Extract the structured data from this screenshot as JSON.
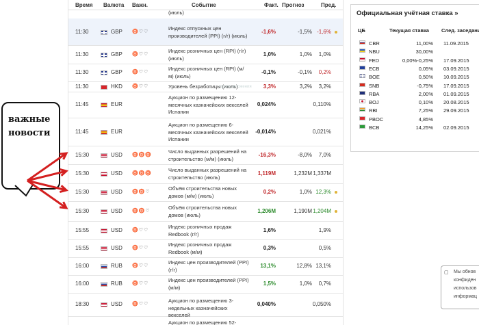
{
  "calendar": {
    "headers": {
      "time": "Время",
      "currency": "Валюта",
      "importance": "Важн.",
      "event": "Событие",
      "actual": "Факт.",
      "forecast": "Прогноз",
      "previous": "Пред."
    },
    "top_fragment": "(июль)",
    "rows": [
      {
        "time": "11:30",
        "cur": "GBP",
        "flag": "gb",
        "bulls": "♉♡♡",
        "event": "Индекс отпускных цен производителей (PPI) (г/г) (июль)",
        "actual": "-1,6%",
        "actual_class": "neg",
        "forecast": "-1,5%",
        "previous": "-1,6%",
        "previous_class": "neg",
        "dot": true,
        "hl": true
      },
      {
        "time": "11:30",
        "cur": "GBP",
        "flag": "gb",
        "bulls": "♉♡♡",
        "event": "Индекс розничных цен (RPI) (г/г) (июль)",
        "actual": "1,0%",
        "actual_class": "neu",
        "forecast": "1,0%",
        "previous": "1,0%",
        "previous_class": "",
        "dot": false,
        "hl": false
      },
      {
        "time": "11:30",
        "cur": "GBP",
        "flag": "gb",
        "bulls": "♉♡♡",
        "event": "Индекс розничных цен (RPI) (м/м) (июль)",
        "actual": "-0,1%",
        "actual_class": "neu",
        "forecast": "-0,1%",
        "previous": "0,2%",
        "previous_class": "neg",
        "dot": false,
        "hl": false
      },
      {
        "time": "11:30",
        "cur": "HKD",
        "flag": "hk",
        "bulls": "♉♡♡",
        "event": "Уровень безработицы (июль)",
        "actual": "3,3%",
        "actual_class": "neg",
        "forecast": "3,2%",
        "previous": "3,2%",
        "previous_class": "",
        "dot": false,
        "hl": false
      },
      {
        "time": "11:45",
        "cur": "EUR",
        "flag": "es",
        "bulls": "",
        "event": "Аукцион по размещению 12-месячных казначейских векселей Испании",
        "actual": "0,024%",
        "actual_class": "neu",
        "forecast": "",
        "previous": "0,110%",
        "previous_class": "",
        "dot": false,
        "hl": false
      },
      {
        "time": "11:45",
        "cur": "EUR",
        "flag": "es",
        "bulls": "",
        "event": "Аукцион по размещению 6-месячных казначейских векселей Испании",
        "actual": "-0,014%",
        "actual_class": "neu",
        "forecast": "",
        "previous": "0,021%",
        "previous_class": "",
        "dot": false,
        "hl": false
      },
      {
        "time": "15:30",
        "cur": "USD",
        "flag": "us",
        "bulls": "♉♉♉",
        "event": "Число выданных разрешений на строительство (м/м) (июль)",
        "actual": "-16,3%",
        "actual_class": "neg",
        "forecast": "-8,0%",
        "previous": "7,0%",
        "previous_class": "",
        "dot": false,
        "hl": false
      },
      {
        "time": "15:30",
        "cur": "USD",
        "flag": "us",
        "bulls": "♉♉♉",
        "event": "Число выданных разрешений на строительство (июль)",
        "actual": "1,119M",
        "actual_class": "neg",
        "forecast": "1,232M",
        "previous": "1,337M",
        "previous_class": "",
        "dot": false,
        "hl": false
      },
      {
        "time": "15:30",
        "cur": "USD",
        "flag": "us",
        "bulls": "♉♉♡",
        "event": "Объём строительства новых домов (м/м) (июль)",
        "actual": "0,2%",
        "actual_class": "neg",
        "forecast": "1,0%",
        "previous": "12,3%",
        "previous_class": "pos",
        "dot": true,
        "hl": false
      },
      {
        "time": "15:30",
        "cur": "USD",
        "flag": "us",
        "bulls": "♉♉♡",
        "event": "Объём строительства новых домов (июль)",
        "actual": "1,206M",
        "actual_class": "pos",
        "forecast": "1,190M",
        "previous": "1,204M",
        "previous_class": "pos",
        "dot": true,
        "hl": false
      },
      {
        "time": "15:55",
        "cur": "USD",
        "flag": "us",
        "bulls": "♉♡♡",
        "event": "Индекс розничных продаж Redbook (г/г)",
        "actual": "1,6%",
        "actual_class": "neu",
        "forecast": "",
        "previous": "1,9%",
        "previous_class": "",
        "dot": false,
        "hl": false
      },
      {
        "time": "15:55",
        "cur": "USD",
        "flag": "us",
        "bulls": "♉♡♡",
        "event": "Индекс розничных продаж Redbook (м/м)",
        "actual": "0,3%",
        "actual_class": "neu",
        "forecast": "",
        "previous": "0,5%",
        "previous_class": "",
        "dot": false,
        "hl": false
      },
      {
        "time": "16:00",
        "cur": "RUB",
        "flag": "ru",
        "bulls": "♉♡♡",
        "event": "Индекс цен производителей (PPI) (г/г)",
        "actual": "13,1%",
        "actual_class": "pos",
        "forecast": "12,8%",
        "previous": "13,1%",
        "previous_class": "",
        "dot": false,
        "hl": false
      },
      {
        "time": "16:00",
        "cur": "RUB",
        "flag": "ru",
        "bulls": "♉♡♡",
        "event": "Индекс цен производителей (PPI) (м/м)",
        "actual": "1,5%",
        "actual_class": "pos",
        "forecast": "1,0%",
        "previous": "0,7%",
        "previous_class": "",
        "dot": false,
        "hl": false
      },
      {
        "time": "18:30",
        "cur": "USD",
        "flag": "us",
        "bulls": "♉♡♡",
        "event": "Аукцион по размещению 3-недельных казначейских векселей",
        "actual": "0,040%",
        "actual_class": "neu",
        "forecast": "",
        "previous": "0,050%",
        "previous_class": "",
        "dot": false,
        "hl": false
      },
      {
        "time": "",
        "cur": "",
        "flag": "",
        "bulls": "",
        "event": "Аукцион по размещению 52-",
        "actual": "",
        "actual_class": "",
        "forecast": "",
        "previous": "",
        "previous_class": "",
        "dot": false,
        "hl": false
      }
    ],
    "ghost_label": "Промо-вложения"
  },
  "rates": {
    "title": "Официальная учётная ставка »",
    "headers": {
      "bank": "ЦБ",
      "current": "Текущая ставка",
      "next": "След. заседание"
    },
    "rows": [
      {
        "flag": "ru",
        "bank": "CBR",
        "current": "11,00%",
        "next": "11.09.2015"
      },
      {
        "flag": "ua",
        "bank": "NBU",
        "current": "30,00%",
        "next": ""
      },
      {
        "flag": "us",
        "bank": "FED",
        "current": "0,00%-0,25%",
        "next": "17.09.2015"
      },
      {
        "flag": "eu",
        "bank": "ECB",
        "current": "0,05%",
        "next": "03.09.2015"
      },
      {
        "flag": "gb",
        "bank": "BOE",
        "current": "0,50%",
        "next": "10.09.2015"
      },
      {
        "flag": "ch",
        "bank": "SNB",
        "current": "-0,75%",
        "next": "17.09.2015"
      },
      {
        "flag": "au",
        "bank": "RBA",
        "current": "2,00%",
        "next": "01.09.2015"
      },
      {
        "flag": "jp",
        "bank": "BOJ",
        "current": "0,10%",
        "next": "20.08.2015"
      },
      {
        "flag": "in",
        "bank": "RBI",
        "current": "7,25%",
        "next": "29.09.2015"
      },
      {
        "flag": "cn",
        "bank": "PBOC",
        "current": "4,85%",
        "next": ""
      },
      {
        "flag": "br",
        "bank": "BCB",
        "current": "14,25%",
        "next": "02.09.2015"
      }
    ]
  },
  "callout": {
    "line1": "важные",
    "line2": "новости"
  },
  "notice": {
    "lines": [
      "Мы обнов",
      "конфиден",
      "использов",
      "информац"
    ]
  },
  "colors": {
    "arrow": "#d42020",
    "negative": "#c0282b",
    "positive": "#2b8a2b",
    "highlight": "#eef3fb"
  }
}
